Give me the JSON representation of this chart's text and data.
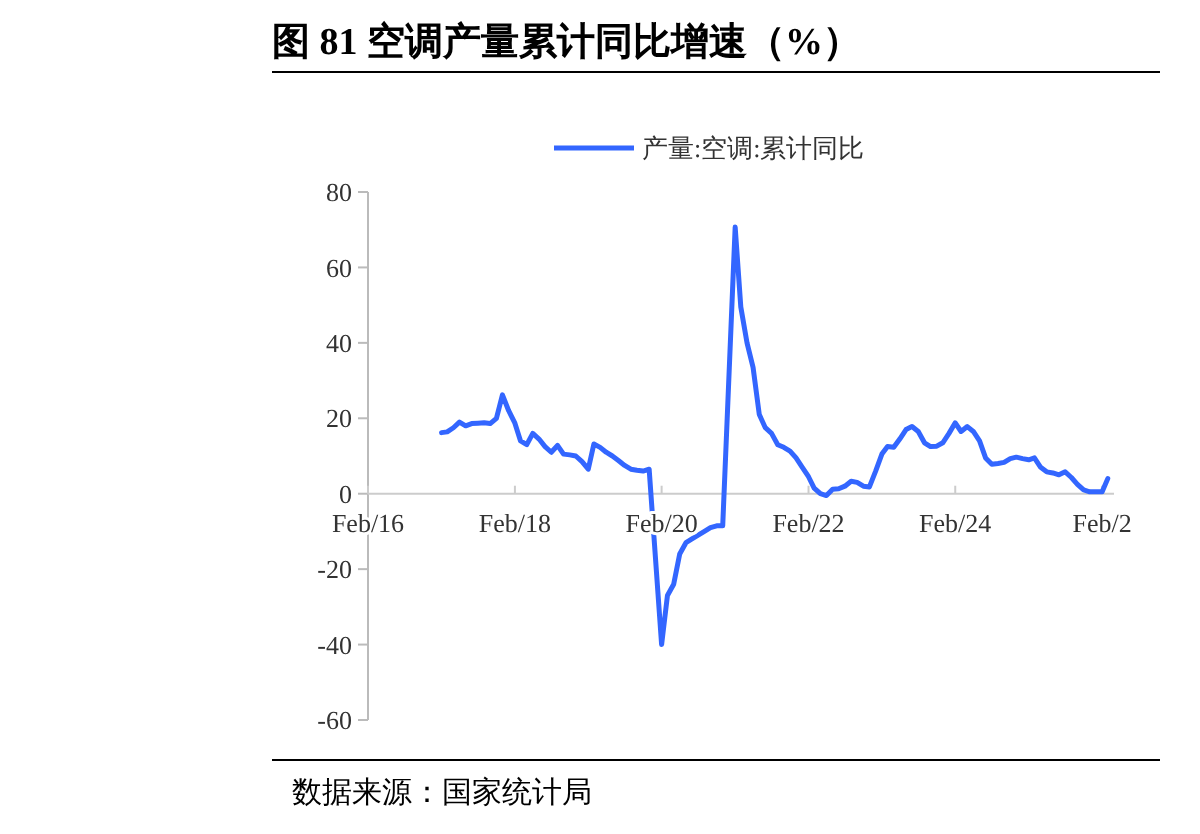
{
  "chart_data": {
    "type": "line",
    "title": "图 81 空调产量累计同比增速（%）",
    "annotations": [
      "数据来源：国家统计局"
    ],
    "legend": "top",
    "xlim": [
      "2016-02",
      "2026-04"
    ],
    "xticks": [
      {
        "value": "2016-02",
        "label": "Feb/16"
      },
      {
        "value": "2018-02",
        "label": "Feb/18"
      },
      {
        "value": "2020-02",
        "label": "Feb/20"
      },
      {
        "value": "2022-02",
        "label": "Feb/22"
      },
      {
        "value": "2024-02",
        "label": "Feb/24"
      },
      {
        "value": "2026-02",
        "label": "Feb/2"
      }
    ],
    "ylim": [
      -60,
      80
    ],
    "yticks": [
      -60,
      -40,
      -20,
      0,
      20,
      40,
      60,
      80
    ],
    "grid": false,
    "x": [
      "2017-02",
      "2017-03",
      "2017-04",
      "2017-05",
      "2017-06",
      "2017-07",
      "2017-08",
      "2017-09",
      "2017-10",
      "2017-11",
      "2017-12",
      "2018-01",
      "2018-02",
      "2018-03",
      "2018-04",
      "2018-05",
      "2018-06",
      "2018-07",
      "2018-08",
      "2018-09",
      "2018-10",
      "2018-11",
      "2018-12",
      "2019-01",
      "2019-02",
      "2019-03",
      "2019-04",
      "2019-05",
      "2019-06",
      "2019-07",
      "2019-08",
      "2019-09",
      "2019-10",
      "2019-11",
      "2019-12",
      "2020-02",
      "2020-03",
      "2020-04",
      "2020-05",
      "2020-06",
      "2020-07",
      "2020-08",
      "2020-09",
      "2020-10",
      "2020-11",
      "2020-12",
      "2021-02",
      "2021-03",
      "2021-04",
      "2021-05",
      "2021-06",
      "2021-07",
      "2021-08",
      "2021-09",
      "2021-10",
      "2021-11",
      "2021-12",
      "2022-01",
      "2022-02",
      "2022-03",
      "2022-04",
      "2022-05",
      "2022-06",
      "2022-07",
      "2022-08",
      "2022-09",
      "2022-10",
      "2022-11",
      "2022-12",
      "2023-01",
      "2023-02",
      "2023-03",
      "2023-04",
      "2023-05",
      "2023-06",
      "2023-07",
      "2023-08",
      "2023-09",
      "2023-10",
      "2023-11",
      "2023-12",
      "2024-01",
      "2024-02",
      "2024-03",
      "2024-04",
      "2024-05",
      "2024-06",
      "2024-07",
      "2024-08",
      "2024-09",
      "2024-10",
      "2024-11",
      "2024-12",
      "2025-01",
      "2025-02",
      "2025-03",
      "2025-04",
      "2025-05",
      "2025-06",
      "2025-07",
      "2025-08",
      "2025-09",
      "2025-10",
      "2025-11",
      "2025-12",
      "2026-01",
      "2026-02",
      "2026-03"
    ],
    "series": [
      {
        "name": "产量:空调:累计同比",
        "color": "#3366ff",
        "values": [
          16.2,
          16.4,
          17.5,
          19,
          18,
          18.6,
          18.7,
          18.8,
          18.6,
          20,
          26.2,
          22,
          18.7,
          14,
          13,
          16,
          14.5,
          12.5,
          11,
          12.8,
          10.5,
          10.3,
          10,
          8.5,
          6.5,
          13.2,
          12.3,
          11,
          10,
          8.8,
          7.5,
          6.5,
          6.2,
          6,
          6.5,
          -40,
          -27,
          -24,
          -16,
          -13,
          -12,
          -11,
          -10,
          -9,
          -8.5,
          -8.5,
          70.7,
          49.5,
          40,
          33.5,
          21,
          17.5,
          16,
          13,
          12.3,
          11.3,
          9.5,
          7,
          4.5,
          1.5,
          0,
          -0.5,
          1.2,
          1.3,
          2,
          3.3,
          3,
          2,
          1.8,
          6,
          10.5,
          12.5,
          12.3,
          14.5,
          17,
          17.8,
          16.5,
          13.5,
          12.5,
          12.6,
          13.5,
          16,
          18.8,
          16.5,
          17.8,
          16.5,
          14,
          9.5,
          7.8,
          8,
          8.3,
          9.3,
          9.7,
          9.3,
          9,
          9.5,
          7,
          5.8,
          5.5,
          5,
          5.8,
          4.3,
          2.5,
          1,
          0.5,
          0.5,
          0.5,
          4
        ]
      }
    ]
  }
}
